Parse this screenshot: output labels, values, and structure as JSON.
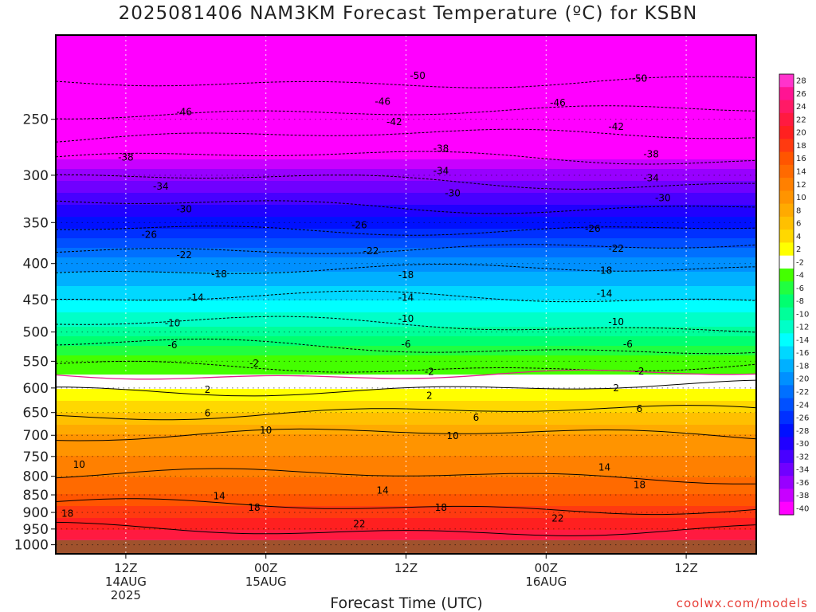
{
  "title": "2025081406 NAM3KM Forecast Temperature (ºC) for KSBN",
  "xlabel": "Forecast Time (UTC)",
  "credit": "coolwx.com/models",
  "colors": {
    "ground": "#a0522d",
    "freezing_line": "#e0208a"
  },
  "chart_data": {
    "type": "heatmap",
    "title": "2025081406 NAM3KM Forecast Temperature (ºC) for KSBN",
    "xlabel": "Forecast Time (UTC)",
    "ylabel": "",
    "x_ticks": [
      {
        "hour": 6,
        "lines": [
          "12Z",
          "14AUG",
          "2025"
        ]
      },
      {
        "hour": 18,
        "lines": [
          "00Z",
          "15AUG"
        ]
      },
      {
        "hour": 30,
        "lines": [
          "12Z"
        ]
      },
      {
        "hour": 42,
        "lines": [
          "00Z",
          "16AUG"
        ]
      },
      {
        "hour": 54,
        "lines": [
          "12Z"
        ]
      }
    ],
    "xlim": [
      0,
      60
    ],
    "y_axis": "pressure (hPa), log scale, inverted",
    "y_ticks": [
      250,
      300,
      350,
      400,
      450,
      500,
      550,
      600,
      650,
      700,
      750,
      800,
      850,
      900,
      950,
      1000
    ],
    "ylim": [
      1030,
      190
    ],
    "colorbar": {
      "labels": [
        28,
        26,
        24,
        22,
        20,
        18,
        16,
        14,
        12,
        10,
        8,
        6,
        4,
        2,
        -2,
        -4,
        -6,
        -8,
        -10,
        -12,
        -14,
        -16,
        -18,
        -20,
        -22,
        -24,
        -26,
        -28,
        -30,
        -32,
        -34,
        -36,
        -38,
        -40
      ],
      "colors": [
        "#ff33cc",
        "#ff1493",
        "#ff1a66",
        "#ff1a40",
        "#ff2020",
        "#ff3a10",
        "#ff5500",
        "#ff6a00",
        "#ff8000",
        "#ff9400",
        "#ffaa00",
        "#ffc000",
        "#ffd800",
        "#ffff00",
        "#ffffff",
        "#44ff00",
        "#20ff40",
        "#00ff70",
        "#00ff9a",
        "#00ffc8",
        "#00ffff",
        "#00d8ff",
        "#00b0ff",
        "#0090ff",
        "#0070ff",
        "#0050ff",
        "#0030ff",
        "#0010ff",
        "#2000ff",
        "#4800ff",
        "#7000ff",
        "#9800ff",
        "#c800ff",
        "#ff00ff"
      ]
    },
    "profile": [
      {
        "p": 200,
        "t": -54
      },
      {
        "p": 250,
        "t": -45
      },
      {
        "p": 300,
        "t": -35
      },
      {
        "p": 350,
        "t": -27
      },
      {
        "p": 400,
        "t": -19
      },
      {
        "p": 450,
        "t": -14
      },
      {
        "p": 500,
        "t": -9
      },
      {
        "p": 550,
        "t": -3
      },
      {
        "p": 575,
        "t": 0
      },
      {
        "p": 600,
        "t": 2
      },
      {
        "p": 650,
        "t": 6
      },
      {
        "p": 700,
        "t": 10
      },
      {
        "p": 750,
        "t": 12
      },
      {
        "p": 800,
        "t": 14
      },
      {
        "p": 850,
        "t": 16
      },
      {
        "p": 900,
        "t": 19
      },
      {
        "p": 950,
        "t": 22
      },
      {
        "p": 1000,
        "t": 25
      }
    ],
    "contour_labels": [
      {
        "text": "-50",
        "hour": 31,
        "p": 217
      },
      {
        "text": "-50",
        "hour": 50,
        "p": 219
      },
      {
        "text": "-46",
        "hour": 11,
        "p": 244
      },
      {
        "text": "-46",
        "hour": 28,
        "p": 236
      },
      {
        "text": "-46",
        "hour": 43,
        "p": 237
      },
      {
        "text": "-42",
        "hour": 29,
        "p": 252
      },
      {
        "text": "-42",
        "hour": 48,
        "p": 256
      },
      {
        "text": "-38",
        "hour": 6,
        "p": 283
      },
      {
        "text": "-38",
        "hour": 33,
        "p": 275
      },
      {
        "text": "-38",
        "hour": 51,
        "p": 280
      },
      {
        "text": "-34",
        "hour": 9,
        "p": 311
      },
      {
        "text": "-34",
        "hour": 33,
        "p": 296
      },
      {
        "text": "-34",
        "hour": 51,
        "p": 303
      },
      {
        "text": "-30",
        "hour": 11,
        "p": 335
      },
      {
        "text": "-30",
        "hour": 34,
        "p": 318
      },
      {
        "text": "-30",
        "hour": 52,
        "p": 323
      },
      {
        "text": "-26",
        "hour": 8,
        "p": 364
      },
      {
        "text": "-26",
        "hour": 26,
        "p": 353
      },
      {
        "text": "-26",
        "hour": 46,
        "p": 357
      },
      {
        "text": "-22",
        "hour": 11,
        "p": 389
      },
      {
        "text": "-22",
        "hour": 27,
        "p": 384
      },
      {
        "text": "-22",
        "hour": 48,
        "p": 381
      },
      {
        "text": "-18",
        "hour": 14,
        "p": 414
      },
      {
        "text": "-18",
        "hour": 30,
        "p": 415
      },
      {
        "text": "-18",
        "hour": 47,
        "p": 409
      },
      {
        "text": "-14",
        "hour": 12,
        "p": 447
      },
      {
        "text": "-14",
        "hour": 30,
        "p": 447
      },
      {
        "text": "-14",
        "hour": 47,
        "p": 441
      },
      {
        "text": "-10",
        "hour": 10,
        "p": 486
      },
      {
        "text": "-10",
        "hour": 30,
        "p": 479
      },
      {
        "text": "-10",
        "hour": 48,
        "p": 484
      },
      {
        "text": "-6",
        "hour": 10,
        "p": 522
      },
      {
        "text": "-6",
        "hour": 30,
        "p": 520
      },
      {
        "text": "-6",
        "hour": 49,
        "p": 520
      },
      {
        "text": "-2",
        "hour": 17,
        "p": 554
      },
      {
        "text": "-2",
        "hour": 32,
        "p": 569
      },
      {
        "text": "-2",
        "hour": 50,
        "p": 568
      },
      {
        "text": "2",
        "hour": 13,
        "p": 603
      },
      {
        "text": "2",
        "hour": 32,
        "p": 615
      },
      {
        "text": "2",
        "hour": 48,
        "p": 600
      },
      {
        "text": "6",
        "hour": 13,
        "p": 651
      },
      {
        "text": "6",
        "hour": 36,
        "p": 661
      },
      {
        "text": "6",
        "hour": 50,
        "p": 642
      },
      {
        "text": "10",
        "hour": 18,
        "p": 689
      },
      {
        "text": "10",
        "hour": 34,
        "p": 701
      },
      {
        "text": "10",
        "hour": 2,
        "p": 770
      },
      {
        "text": "14",
        "hour": 14,
        "p": 853
      },
      {
        "text": "14",
        "hour": 28,
        "p": 838
      },
      {
        "text": "14",
        "hour": 47,
        "p": 777
      },
      {
        "text": "18",
        "hour": 1,
        "p": 903
      },
      {
        "text": "18",
        "hour": 17,
        "p": 886
      },
      {
        "text": "18",
        "hour": 33,
        "p": 886
      },
      {
        "text": "18",
        "hour": 50,
        "p": 823
      },
      {
        "text": "22",
        "hour": 26,
        "p": 935
      },
      {
        "text": "22",
        "hour": 43,
        "p": 918
      }
    ]
  }
}
